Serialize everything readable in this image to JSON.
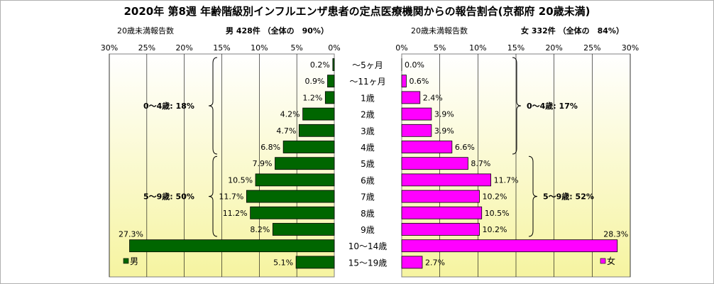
{
  "title": "2020年 第8週 年齢階級別インフルエンザ患者の定点医療機関からの報告割合(京都府 20歳未満)",
  "colors": {
    "male": "#006600",
    "female": "#ff00ff",
    "bar_stroke": "#000000",
    "bg_top": "#ffffff",
    "bg_bottom": "#f6f4a0"
  },
  "chart_data": [
    {
      "type": "bar",
      "orientation": "horizontal",
      "direction": "right-to-left",
      "subtitle_left": "20歳未満報告数",
      "subtitle_right": "男 428件 （全体の　90%）",
      "legend": "男",
      "legend_position": "bottom-left",
      "xlim": [
        0,
        30
      ],
      "tick_labels": [
        "30%",
        "25%",
        "20%",
        "15%",
        "10%",
        "5%",
        "0%"
      ],
      "categories": [
        "～5ヶ月",
        "～11ヶ月",
        "1歳",
        "2歳",
        "3歳",
        "4歳",
        "5歳",
        "6歳",
        "7歳",
        "8歳",
        "9歳",
        "10～14歳",
        "15～19歳"
      ],
      "values": [
        0.2,
        0.9,
        1.2,
        4.2,
        4.7,
        6.8,
        7.9,
        10.5,
        11.7,
        11.2,
        8.2,
        27.3,
        5.1
      ],
      "value_labels": [
        "0.2%",
        "0.9%",
        "1.2%",
        "4.2%",
        "4.7%",
        "6.8%",
        "7.9%",
        "10.5%",
        "11.7%",
        "11.2%",
        "8.2%",
        "27.3%",
        "5.1%"
      ],
      "groups": [
        {
          "label": "0～4歳: 18%",
          "from": 0,
          "to": 5
        },
        {
          "label": "5～9歳: 50%",
          "from": 6,
          "to": 10
        }
      ]
    },
    {
      "type": "bar",
      "orientation": "horizontal",
      "direction": "left-to-right",
      "subtitle_left": "20歳未満報告数",
      "subtitle_right": "女 332件 （全体の　84%）",
      "legend": "女",
      "legend_position": "bottom-right",
      "xlim": [
        0,
        30
      ],
      "tick_labels": [
        "0%",
        "5%",
        "10%",
        "15%",
        "20%",
        "25%",
        "30%"
      ],
      "categories": [
        "～5ヶ月",
        "～11ヶ月",
        "1歳",
        "2歳",
        "3歳",
        "4歳",
        "5歳",
        "6歳",
        "7歳",
        "8歳",
        "9歳",
        "10～14歳",
        "15～19歳"
      ],
      "values": [
        0.0,
        0.6,
        2.4,
        3.9,
        3.9,
        6.6,
        8.7,
        11.7,
        10.2,
        10.5,
        10.2,
        28.3,
        2.7
      ],
      "value_labels": [
        "0.0%",
        "0.6%",
        "2.4%",
        "3.9%",
        "3.9%",
        "6.6%",
        "8.7%",
        "11.7%",
        "10.2%",
        "10.5%",
        "10.2%",
        "28.3%",
        "2.7%"
      ],
      "groups": [
        {
          "label": "0～4歳: 17%",
          "from": 0,
          "to": 5
        },
        {
          "label": "5～9歳: 52%",
          "from": 6,
          "to": 10
        }
      ]
    }
  ]
}
